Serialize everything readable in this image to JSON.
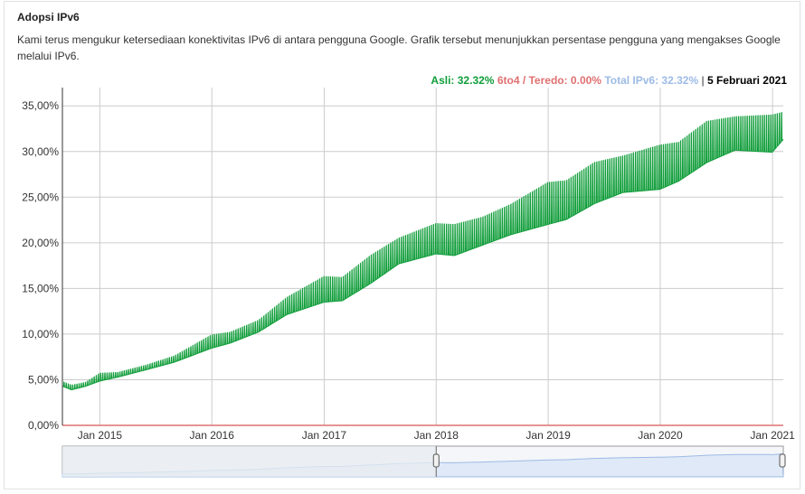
{
  "title": "Adopsi IPv6",
  "description": "Kami terus mengukur ketersediaan konektivitas IPv6 di antara pengguna Google. Grafik tersebut menunjukkan persentase pengguna yang mengakses Google melalui IPv6.",
  "legend": {
    "native_label": "Asli: 32.32%",
    "sixto4_label": "6to4 / Teredo: 0.00%",
    "total_label": "Total IPv6: 32.32%",
    "separator": " | ",
    "date_label": "5 Februari 2021"
  },
  "colors": {
    "native": "#109d3a",
    "sixto4": "#e07070",
    "total": "#9dbbe6",
    "grid": "#cccccc"
  },
  "chart_data": {
    "type": "line",
    "title": "Adopsi IPv6",
    "xlabel": "",
    "ylabel": "",
    "ylim": [
      0,
      37
    ],
    "xlim": [
      "2014-09-01",
      "2021-02-05"
    ],
    "grid": true,
    "legend_position": "top-right",
    "y_ticks": [
      "0,00%",
      "5,00%",
      "10,00%",
      "15,00%",
      "20,00%",
      "25,00%",
      "30,00%",
      "35,00%"
    ],
    "y_tick_values": [
      0,
      5,
      10,
      15,
      20,
      25,
      30,
      35
    ],
    "x_ticks": [
      "Jan 2015",
      "Jan 2016",
      "Jan 2017",
      "Jan 2018",
      "Jan 2019",
      "Jan 2020",
      "Jan 2021"
    ],
    "x_tick_dates": [
      "2015-01-01",
      "2016-01-01",
      "2017-01-01",
      "2018-01-01",
      "2019-01-01",
      "2020-01-01",
      "2021-01-01"
    ],
    "series": [
      {
        "name": "Asli",
        "upper": [
          [
            "2014-09-01",
            4.8
          ],
          [
            "2014-10-01",
            4.4
          ],
          [
            "2014-11-15",
            4.7
          ],
          [
            "2015-01-01",
            5.7
          ],
          [
            "2015-03-01",
            5.8
          ],
          [
            "2015-06-01",
            6.6
          ],
          [
            "2015-09-01",
            7.6
          ],
          [
            "2015-12-31",
            9.9
          ],
          [
            "2016-03-01",
            10.2
          ],
          [
            "2016-06-01",
            11.5
          ],
          [
            "2016-09-01",
            14.0
          ],
          [
            "2016-12-31",
            16.3
          ],
          [
            "2017-03-01",
            16.2
          ],
          [
            "2017-06-01",
            18.6
          ],
          [
            "2017-09-01",
            20.5
          ],
          [
            "2017-12-31",
            22.1
          ],
          [
            "2018-03-01",
            22.0
          ],
          [
            "2018-06-01",
            22.8
          ],
          [
            "2018-09-01",
            24.2
          ],
          [
            "2018-12-31",
            26.6
          ],
          [
            "2019-03-01",
            26.8
          ],
          [
            "2019-06-01",
            28.8
          ],
          [
            "2019-09-01",
            29.5
          ],
          [
            "2019-12-31",
            30.7
          ],
          [
            "2020-03-01",
            31.0
          ],
          [
            "2020-06-01",
            33.3
          ],
          [
            "2020-09-01",
            33.8
          ],
          [
            "2020-12-31",
            34.0
          ],
          [
            "2021-02-05",
            34.3
          ]
        ],
        "lower": [
          [
            "2014-09-01",
            4.2
          ],
          [
            "2014-10-01",
            3.8
          ],
          [
            "2014-11-15",
            4.2
          ],
          [
            "2015-01-01",
            4.7
          ],
          [
            "2015-03-01",
            5.2
          ],
          [
            "2015-06-01",
            6.0
          ],
          [
            "2015-09-01",
            6.8
          ],
          [
            "2015-12-31",
            8.2
          ],
          [
            "2016-03-01",
            8.8
          ],
          [
            "2016-06-01",
            10.0
          ],
          [
            "2016-09-01",
            11.8
          ],
          [
            "2016-12-31",
            13.0
          ],
          [
            "2017-03-01",
            13.2
          ],
          [
            "2017-06-01",
            15.0
          ],
          [
            "2017-09-01",
            17.2
          ],
          [
            "2017-12-31",
            18.2
          ],
          [
            "2018-03-01",
            18.0
          ],
          [
            "2018-06-01",
            19.2
          ],
          [
            "2018-09-01",
            20.3
          ],
          [
            "2018-12-31",
            21.2
          ],
          [
            "2019-03-01",
            21.8
          ],
          [
            "2019-06-01",
            23.5
          ],
          [
            "2019-09-01",
            24.8
          ],
          [
            "2019-12-31",
            25.0
          ],
          [
            "2020-03-01",
            26.0
          ],
          [
            "2020-06-01",
            28.0
          ],
          [
            "2020-09-01",
            29.5
          ],
          [
            "2020-12-31",
            29.2
          ],
          [
            "2021-02-05",
            30.8
          ]
        ]
      },
      {
        "name": "6to4 / Teredo",
        "values": [
          [
            "2014-09-01",
            0.0
          ],
          [
            "2021-02-05",
            0.0
          ]
        ]
      }
    ],
    "range_selector": {
      "start": "2014-09-01",
      "end": "2021-02-05",
      "selected_start": "2018-01-01",
      "selected_end": "2021-02-05"
    }
  }
}
